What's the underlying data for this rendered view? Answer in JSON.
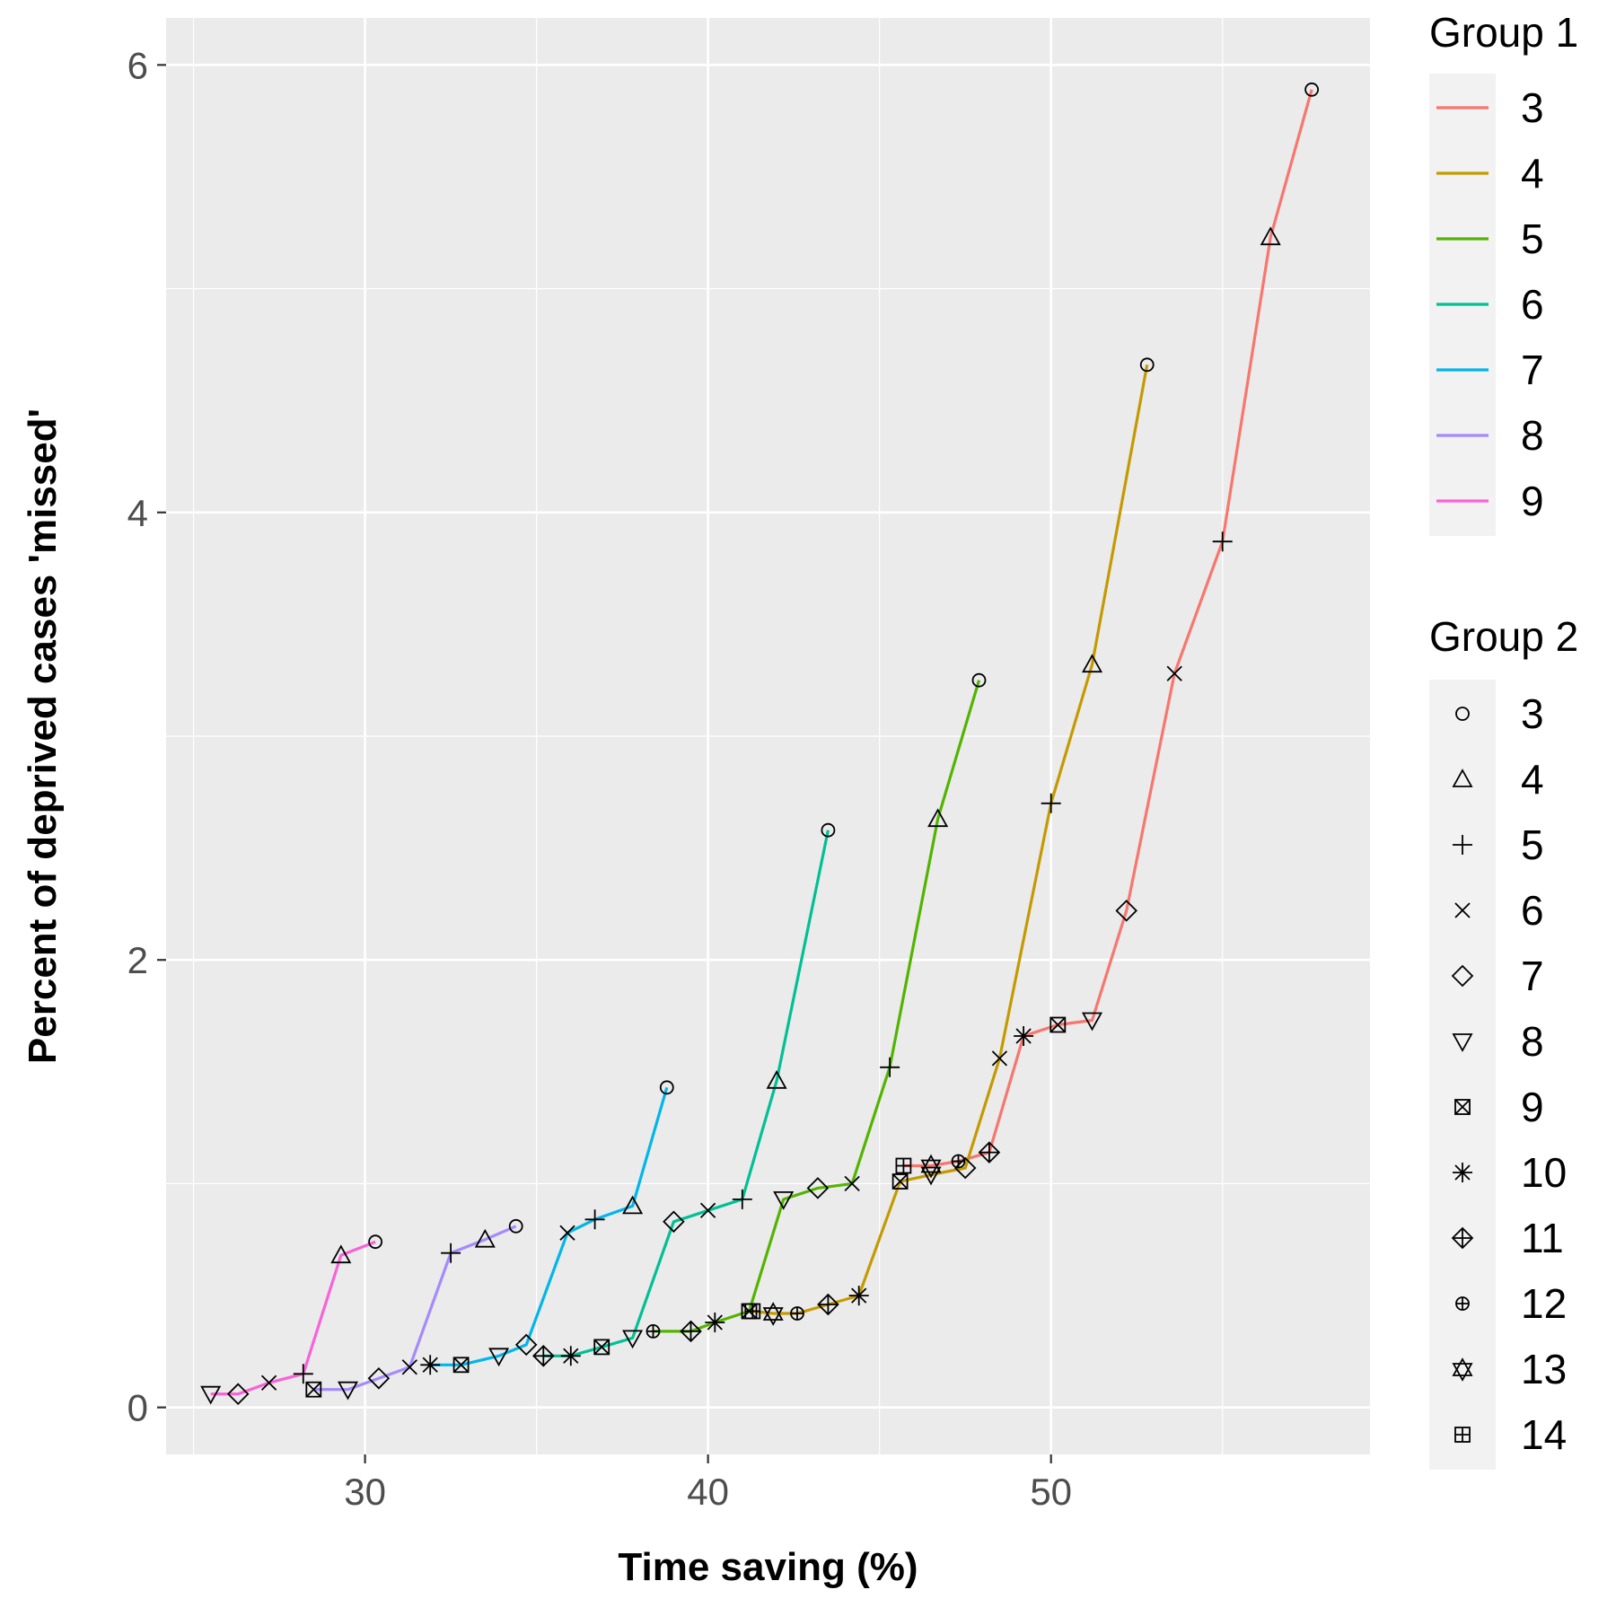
{
  "chart_data": {
    "type": "line",
    "xlabel": "Time saving (%)",
    "ylabel": "Percent of deprived cases 'missed'",
    "xlim": [
      24.2,
      59.3
    ],
    "ylim": [
      -0.21,
      6.21
    ],
    "x_ticks": [
      30,
      40,
      50
    ],
    "x_tick_labels": [
      "30",
      "40",
      "50"
    ],
    "y_ticks": [
      0,
      2,
      4,
      6
    ],
    "y_tick_labels": [
      "0",
      "2",
      "4",
      "6"
    ],
    "grid": true,
    "background": "#ebebeb",
    "legend_color_title": "Group 1",
    "legend_shape_title": "Group 2",
    "legend_placement": "right",
    "series": [
      {
        "name": "3",
        "color": "#F8766D",
        "points": [
          [
            45.7,
            1.08
          ],
          [
            46.5,
            1.08
          ],
          [
            47.3,
            1.1
          ],
          [
            48.2,
            1.14
          ],
          [
            49.2,
            1.66
          ],
          [
            50.2,
            1.71
          ],
          [
            51.2,
            1.73
          ],
          [
            52.2,
            2.22
          ],
          [
            53.6,
            3.28
          ],
          [
            55.0,
            3.87
          ],
          [
            56.4,
            5.23
          ],
          [
            57.6,
            5.89
          ]
        ]
      },
      {
        "name": "4",
        "color": "#C49A00",
        "points": [
          [
            41.3,
            0.43
          ],
          [
            41.9,
            0.42
          ],
          [
            42.6,
            0.42
          ],
          [
            43.5,
            0.46
          ],
          [
            44.4,
            0.5
          ],
          [
            45.6,
            1.01
          ],
          [
            46.5,
            1.04
          ],
          [
            47.5,
            1.07
          ],
          [
            48.5,
            1.56
          ],
          [
            50.0,
            2.7
          ],
          [
            51.2,
            3.32
          ],
          [
            52.8,
            4.66
          ]
        ]
      },
      {
        "name": "5",
        "color": "#53B400",
        "points": [
          [
            38.4,
            0.34
          ],
          [
            39.5,
            0.34
          ],
          [
            40.2,
            0.38
          ],
          [
            41.2,
            0.43
          ],
          [
            42.2,
            0.93
          ],
          [
            43.2,
            0.98
          ],
          [
            44.2,
            1.0
          ],
          [
            45.3,
            1.52
          ],
          [
            46.7,
            2.63
          ],
          [
            47.9,
            3.25
          ]
        ]
      },
      {
        "name": "6",
        "color": "#00C094",
        "points": [
          [
            35.2,
            0.23
          ],
          [
            36.0,
            0.23
          ],
          [
            36.9,
            0.27
          ],
          [
            37.8,
            0.31
          ],
          [
            39.0,
            0.83
          ],
          [
            40.0,
            0.88
          ],
          [
            41.0,
            0.93
          ],
          [
            42.0,
            1.46
          ],
          [
            43.5,
            2.58
          ]
        ]
      },
      {
        "name": "7",
        "color": "#00B6EB",
        "points": [
          [
            31.9,
            0.19
          ],
          [
            32.8,
            0.19
          ],
          [
            33.9,
            0.23
          ],
          [
            34.7,
            0.28
          ],
          [
            35.9,
            0.78
          ],
          [
            36.7,
            0.84
          ],
          [
            37.8,
            0.9
          ],
          [
            38.8,
            1.43
          ]
        ]
      },
      {
        "name": "8",
        "color": "#A58AFF",
        "points": [
          [
            28.5,
            0.08
          ],
          [
            29.5,
            0.08
          ],
          [
            30.4,
            0.13
          ],
          [
            31.3,
            0.18
          ],
          [
            32.5,
            0.69
          ],
          [
            33.5,
            0.75
          ],
          [
            34.4,
            0.81
          ]
        ]
      },
      {
        "name": "9",
        "color": "#FB61D7",
        "points": [
          [
            25.5,
            0.06
          ],
          [
            26.3,
            0.06
          ],
          [
            27.2,
            0.11
          ],
          [
            28.2,
            0.15
          ],
          [
            29.3,
            0.68
          ],
          [
            30.3,
            0.74
          ]
        ]
      }
    ],
    "shape_legend": [
      "3",
      "4",
      "5",
      "6",
      "7",
      "8",
      "9",
      "10",
      "11",
      "12",
      "13",
      "14"
    ],
    "points": [
      {
        "shape": "3",
        "x": 57.6,
        "y": 5.89
      },
      {
        "shape": "4",
        "x": 56.4,
        "y": 5.23
      },
      {
        "shape": "5",
        "x": 55.0,
        "y": 3.87
      },
      {
        "shape": "6",
        "x": 53.6,
        "y": 3.28
      },
      {
        "shape": "7",
        "x": 52.2,
        "y": 2.22
      },
      {
        "shape": "8",
        "x": 51.2,
        "y": 1.73
      },
      {
        "shape": "9",
        "x": 50.2,
        "y": 1.71
      },
      {
        "shape": "10",
        "x": 49.2,
        "y": 1.66
      },
      {
        "shape": "11",
        "x": 48.2,
        "y": 1.14
      },
      {
        "shape": "12",
        "x": 47.3,
        "y": 1.1
      },
      {
        "shape": "13",
        "x": 46.5,
        "y": 1.08
      },
      {
        "shape": "14",
        "x": 45.7,
        "y": 1.08
      },
      {
        "shape": "3",
        "x": 52.8,
        "y": 4.66
      },
      {
        "shape": "4",
        "x": 51.2,
        "y": 3.32
      },
      {
        "shape": "5",
        "x": 50.0,
        "y": 2.7
      },
      {
        "shape": "6",
        "x": 48.5,
        "y": 1.56
      },
      {
        "shape": "7",
        "x": 47.5,
        "y": 1.07
      },
      {
        "shape": "8",
        "x": 46.5,
        "y": 1.04
      },
      {
        "shape": "9",
        "x": 45.6,
        "y": 1.01
      },
      {
        "shape": "10",
        "x": 44.4,
        "y": 0.5
      },
      {
        "shape": "11",
        "x": 43.5,
        "y": 0.46
      },
      {
        "shape": "12",
        "x": 42.6,
        "y": 0.42
      },
      {
        "shape": "13",
        "x": 41.9,
        "y": 0.42
      },
      {
        "shape": "14",
        "x": 41.3,
        "y": 0.43
      },
      {
        "shape": "3",
        "x": 47.9,
        "y": 3.25
      },
      {
        "shape": "4",
        "x": 46.7,
        "y": 2.63
      },
      {
        "shape": "5",
        "x": 45.3,
        "y": 1.52
      },
      {
        "shape": "6",
        "x": 44.2,
        "y": 1.0
      },
      {
        "shape": "7",
        "x": 43.2,
        "y": 0.98
      },
      {
        "shape": "8",
        "x": 42.2,
        "y": 0.93
      },
      {
        "shape": "9",
        "x": 41.2,
        "y": 0.43
      },
      {
        "shape": "10",
        "x": 40.2,
        "y": 0.38
      },
      {
        "shape": "11",
        "x": 39.5,
        "y": 0.34
      },
      {
        "shape": "12",
        "x": 38.4,
        "y": 0.34
      },
      {
        "shape": "3",
        "x": 43.5,
        "y": 2.58
      },
      {
        "shape": "4",
        "x": 42.0,
        "y": 1.46
      },
      {
        "shape": "5",
        "x": 41.0,
        "y": 0.93
      },
      {
        "shape": "6",
        "x": 40.0,
        "y": 0.88
      },
      {
        "shape": "7",
        "x": 39.0,
        "y": 0.83
      },
      {
        "shape": "8",
        "x": 37.8,
        "y": 0.31
      },
      {
        "shape": "9",
        "x": 36.9,
        "y": 0.27
      },
      {
        "shape": "10",
        "x": 36.0,
        "y": 0.23
      },
      {
        "shape": "11",
        "x": 35.2,
        "y": 0.23
      },
      {
        "shape": "3",
        "x": 38.8,
        "y": 1.43
      },
      {
        "shape": "4",
        "x": 37.8,
        "y": 0.9
      },
      {
        "shape": "5",
        "x": 36.7,
        "y": 0.84
      },
      {
        "shape": "6",
        "x": 35.9,
        "y": 0.78
      },
      {
        "shape": "7",
        "x": 34.7,
        "y": 0.28
      },
      {
        "shape": "8",
        "x": 33.9,
        "y": 0.23
      },
      {
        "shape": "9",
        "x": 32.8,
        "y": 0.19
      },
      {
        "shape": "10",
        "x": 31.9,
        "y": 0.19
      },
      {
        "shape": "3",
        "x": 34.4,
        "y": 0.81
      },
      {
        "shape": "4",
        "x": 33.5,
        "y": 0.75
      },
      {
        "shape": "5",
        "x": 32.5,
        "y": 0.69
      },
      {
        "shape": "6",
        "x": 31.3,
        "y": 0.18
      },
      {
        "shape": "7",
        "x": 30.4,
        "y": 0.13
      },
      {
        "shape": "8",
        "x": 29.5,
        "y": 0.08
      },
      {
        "shape": "9",
        "x": 28.5,
        "y": 0.08
      },
      {
        "shape": "3",
        "x": 30.3,
        "y": 0.74
      },
      {
        "shape": "4",
        "x": 29.3,
        "y": 0.68
      },
      {
        "shape": "5",
        "x": 28.2,
        "y": 0.15
      },
      {
        "shape": "6",
        "x": 27.2,
        "y": 0.11
      },
      {
        "shape": "7",
        "x": 26.3,
        "y": 0.06
      },
      {
        "shape": "8",
        "x": 25.5,
        "y": 0.06
      }
    ]
  }
}
